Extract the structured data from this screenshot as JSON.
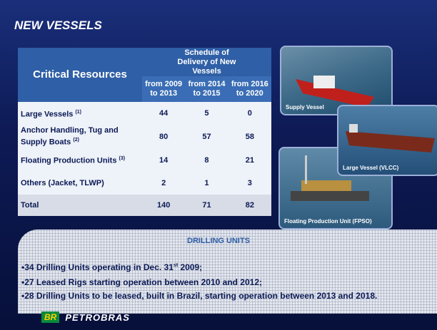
{
  "header": {
    "title": "NEW VESSELS"
  },
  "table": {
    "corner": "Critical Resources",
    "group_header": "Schedule of Delivery of New Vessels",
    "columns": [
      "from 2009 to 2013",
      "from 2014 to 2015",
      "from 2016 to 2020"
    ],
    "rows": [
      {
        "label": "Large Vessels",
        "note": "(1)",
        "values": [
          44,
          5,
          0
        ]
      },
      {
        "label": "Anchor Handling, Tug and Supply Boats",
        "note": "(2)",
        "values": [
          80,
          57,
          58
        ]
      },
      {
        "label": "Floating Production Units",
        "note": "(3)",
        "values": [
          14,
          8,
          21
        ]
      },
      {
        "label": "Others (Jacket, TLWP)",
        "values": [
          2,
          1,
          3
        ]
      }
    ],
    "total": {
      "label": "Total",
      "values": [
        140,
        71,
        82
      ]
    }
  },
  "photos": [
    {
      "caption": "Supply Vessel"
    },
    {
      "caption": "Large Vessel (VLCC)"
    },
    {
      "caption": "Floating Production Unit (FPSO)"
    }
  ],
  "drilling": {
    "title": "DRILLING UNITS",
    "bullets": [
      {
        "text": "•34 Drilling Units operating in Dec. 31",
        "superscript": "st",
        "text_after": " 2009;"
      },
      {
        "text": "•27 Leased Rigs starting operation  between 2010 and 2012;"
      },
      {
        "text": "•28 Drilling Units to be leased, built in Brazil, starting operation between 2013 and 2018."
      }
    ]
  },
  "logo": {
    "mark": "BR",
    "name": "PETROBRAS"
  }
}
